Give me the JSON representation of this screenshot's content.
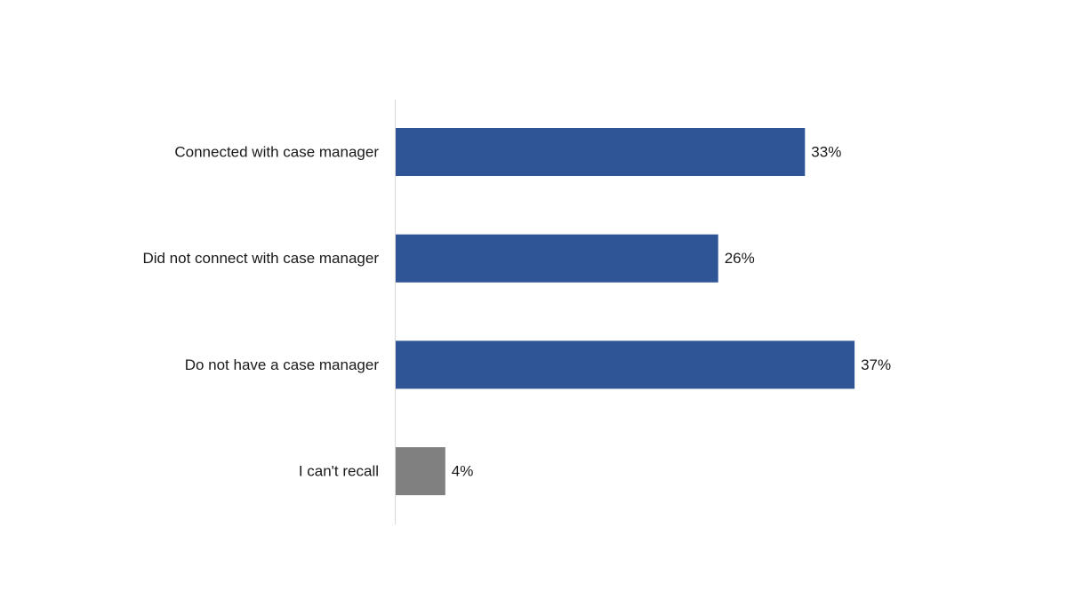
{
  "chart_data": {
    "type": "bar",
    "orientation": "horizontal",
    "title": "",
    "xlabel": "",
    "ylabel": "",
    "categories": [
      "Connected with case manager",
      "Did not connect with case manager",
      "Do not have a case manager",
      "I can't recall"
    ],
    "values": [
      33,
      26,
      37,
      4
    ],
    "value_labels": [
      "33%",
      "26%",
      "37%",
      "4%"
    ],
    "bar_colors": [
      "#2f5597",
      "#2f5597",
      "#2f5597",
      "#808080"
    ],
    "xlim": [
      0,
      40
    ],
    "grid": false,
    "legend": "none"
  }
}
